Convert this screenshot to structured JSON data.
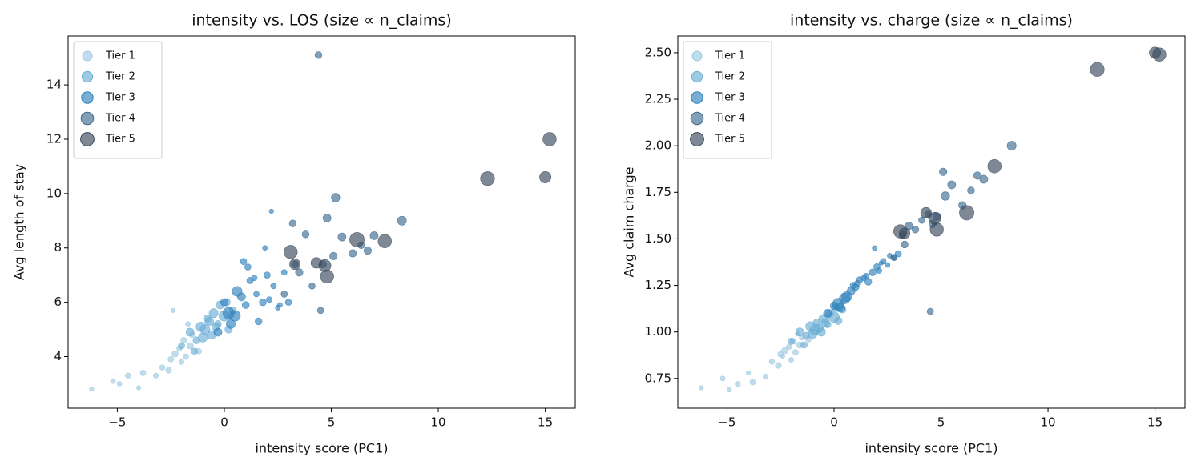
{
  "chart_data": [
    {
      "type": "scatter",
      "title": "intensity vs. LOS (size ∝ n_claims)",
      "x_label": "intensity score (PC1)",
      "y_label": "Avg length of stay",
      "xlim": [
        -7.3,
        16.4
      ],
      "ylim": [
        2.1,
        15.8
      ],
      "xticks": [
        {
          "value": -5,
          "label": "−5"
        },
        0,
        5,
        10,
        15
      ],
      "yticks": [
        4,
        6,
        8,
        10,
        12,
        14
      ],
      "legend": "upper left",
      "series": [
        {
          "name": "Tier 1",
          "color": "#9ecae1",
          "x": [
            -6.2,
            -5.2,
            -4.9,
            -4.5,
            -4.0,
            -3.8,
            -3.2,
            -2.9,
            -2.6,
            -2.5,
            -2.3,
            -2.1,
            -2.0,
            -1.9,
            -1.8,
            -1.6,
            -1.5,
            -2.4,
            -1.2,
            -1.7
          ],
          "y": [
            2.8,
            3.1,
            3.0,
            3.3,
            2.85,
            3.4,
            3.3,
            3.6,
            3.5,
            3.9,
            4.1,
            4.3,
            3.8,
            4.6,
            4.0,
            4.4,
            4.8,
            5.7,
            4.2,
            5.2
          ],
          "sizes": [
            12,
            15,
            14,
            18,
            12,
            20,
            16,
            18,
            22,
            20,
            25,
            18,
            15,
            22,
            20,
            25,
            18,
            12,
            20,
            15
          ]
        },
        {
          "name": "Tier 2",
          "color": "#6baed6",
          "x": [
            -2.0,
            -1.6,
            -1.3,
            -1.1,
            -0.9,
            -0.8,
            -0.6,
            -0.5,
            -0.3,
            -0.2,
            0,
            0.2,
            0.4,
            -1.4,
            -0.7,
            -1.0,
            0.1,
            -0.4
          ],
          "y": [
            4.4,
            4.9,
            4.6,
            5.1,
            5.0,
            5.4,
            4.8,
            5.6,
            5.2,
            5.9,
            5.5,
            5.0,
            5.7,
            4.2,
            5.3,
            4.7,
            6.0,
            5.1
          ],
          "sizes": [
            25,
            40,
            30,
            55,
            60,
            35,
            45,
            50,
            30,
            40,
            70,
            35,
            30,
            25,
            45,
            50,
            35,
            40
          ]
        },
        {
          "name": "Tier 3",
          "color": "#3182bd",
          "x": [
            0.2,
            0.5,
            0.8,
            1.0,
            1.2,
            1.5,
            1.8,
            2.0,
            2.3,
            2.5,
            2.8,
            3.0,
            0.6,
            1.1,
            1.6,
            0.3,
            2.1,
            0.9,
            1.4,
            2.6,
            -0.3,
            0.0,
            2.2,
            1.9
          ],
          "y": [
            5.6,
            5.5,
            6.2,
            5.9,
            6.8,
            6.3,
            6.0,
            7.0,
            6.6,
            5.8,
            7.1,
            6.0,
            6.4,
            7.3,
            5.3,
            5.2,
            6.1,
            7.5,
            6.9,
            5.9,
            4.9,
            6.0,
            9.35,
            8.0
          ],
          "sizes": [
            80,
            70,
            40,
            30,
            25,
            20,
            30,
            25,
            20,
            15,
            20,
            25,
            60,
            25,
            30,
            50,
            20,
            25,
            20,
            15,
            40,
            35,
            12,
            15
          ]
        },
        {
          "name": "Tier 4",
          "color": "#3d6b91",
          "x": [
            3.2,
            3.5,
            3.8,
            4.1,
            4.5,
            4.8,
            5.2,
            5.5,
            6.0,
            6.4,
            6.7,
            7.0,
            8.3,
            4.4,
            3.3,
            5.1,
            2.8,
            4.6
          ],
          "y": [
            8.9,
            7.1,
            8.5,
            6.6,
            5.7,
            9.1,
            9.85,
            8.4,
            7.8,
            8.1,
            7.9,
            8.45,
            9.0,
            15.1,
            7.4,
            7.7,
            6.3,
            7.4
          ],
          "sizes": [
            30,
            35,
            30,
            25,
            25,
            40,
            45,
            40,
            35,
            30,
            35,
            40,
            50,
            30,
            30,
            35,
            25,
            35
          ]
        },
        {
          "name": "Tier 5",
          "color": "#3a4a5c",
          "x": [
            3.1,
            4.3,
            4.8,
            6.2,
            7.5,
            12.3,
            15.0,
            15.2,
            3.3,
            4.7
          ],
          "y": [
            7.85,
            7.45,
            6.95,
            8.3,
            8.25,
            10.55,
            10.6,
            12.0,
            7.4,
            7.35
          ],
          "sizes": [
            110,
            70,
            110,
            130,
            110,
            120,
            80,
            110,
            70,
            90
          ]
        }
      ]
    },
    {
      "type": "scatter",
      "title": "intensity vs. charge (size ∝ n_claims)",
      "x_label": "intensity score (PC1)",
      "y_label": "Avg claim charge",
      "xlim": [
        -7.3,
        16.4
      ],
      "ylim": [
        0.59,
        2.59
      ],
      "xticks": [
        {
          "value": -5,
          "label": "−5"
        },
        0,
        5,
        10,
        15
      ],
      "yticks": [
        0.75,
        {
          "value": 1,
          "label": "1.00"
        },
        1.25,
        {
          "value": 1.5,
          "label": "1.50"
        },
        1.75,
        {
          "value": 2,
          "label": "2.00"
        },
        2.25,
        {
          "value": 2.5,
          "label": "2.50"
        }
      ],
      "legend": "upper left",
      "series": [
        {
          "name": "Tier 1",
          "color": "#9ecae1",
          "x": [
            -6.2,
            -5.2,
            -4.9,
            -4.5,
            -4.0,
            -3.8,
            -3.2,
            -2.9,
            -2.6,
            -2.5,
            -2.3,
            -2.1,
            -2.0,
            -1.9,
            -1.8,
            -1.6,
            -1.5,
            -2.4,
            -1.2,
            -1.7
          ],
          "y": [
            0.7,
            0.75,
            0.69,
            0.72,
            0.78,
            0.73,
            0.76,
            0.84,
            0.82,
            0.88,
            0.9,
            0.92,
            0.85,
            0.95,
            0.89,
            0.93,
            0.97,
            0.87,
            0.96,
            0.99
          ],
          "sizes": [
            12,
            15,
            14,
            18,
            12,
            20,
            16,
            18,
            22,
            20,
            25,
            18,
            15,
            22,
            20,
            25,
            18,
            12,
            20,
            15
          ]
        },
        {
          "name": "Tier 2",
          "color": "#6baed6",
          "x": [
            -2.0,
            -1.6,
            -1.3,
            -1.1,
            -0.9,
            -0.8,
            -0.6,
            -0.5,
            -0.3,
            -0.2,
            0,
            0.2,
            0.4,
            -1.4,
            -0.7,
            -1.0,
            0.1,
            -0.4
          ],
          "y": [
            0.95,
            1.0,
            0.98,
            1.03,
            1.01,
            1.05,
            1.0,
            1.07,
            1.04,
            1.1,
            1.08,
            1.06,
            1.12,
            0.93,
            1.02,
            0.99,
            1.13,
            1.05
          ],
          "sizes": [
            25,
            40,
            30,
            55,
            60,
            35,
            45,
            50,
            30,
            40,
            70,
            35,
            30,
            25,
            45,
            50,
            35,
            40
          ]
        },
        {
          "name": "Tier 3",
          "color": "#3182bd",
          "x": [
            0.2,
            0.5,
            0.8,
            1.0,
            1.2,
            1.5,
            1.8,
            2.0,
            2.3,
            2.5,
            2.8,
            3.0,
            0.6,
            1.1,
            1.6,
            0.3,
            2.1,
            0.9,
            1.4,
            2.6,
            -0.3,
            0.0,
            2.2,
            1.9
          ],
          "y": [
            1.15,
            1.18,
            1.22,
            1.24,
            1.28,
            1.3,
            1.32,
            1.35,
            1.38,
            1.36,
            1.4,
            1.42,
            1.19,
            1.26,
            1.27,
            1.13,
            1.33,
            1.25,
            1.29,
            1.41,
            1.1,
            1.14,
            1.37,
            1.45
          ],
          "sizes": [
            80,
            70,
            40,
            30,
            25,
            20,
            30,
            25,
            20,
            15,
            20,
            25,
            60,
            25,
            30,
            50,
            20,
            25,
            20,
            15,
            40,
            35,
            12,
            15
          ]
        },
        {
          "name": "Tier 4",
          "color": "#3d6b91",
          "x": [
            3.2,
            3.5,
            3.8,
            4.1,
            4.5,
            4.8,
            5.2,
            5.5,
            6.0,
            6.4,
            6.7,
            7.0,
            8.3,
            4.4,
            3.3,
            5.1,
            2.8,
            4.6
          ],
          "y": [
            1.52,
            1.57,
            1.55,
            1.6,
            1.11,
            1.62,
            1.73,
            1.79,
            1.68,
            1.76,
            1.84,
            1.82,
            2.0,
            1.63,
            1.47,
            1.86,
            1.4,
            1.58
          ],
          "sizes": [
            30,
            35,
            30,
            25,
            25,
            40,
            45,
            40,
            35,
            30,
            35,
            40,
            50,
            30,
            30,
            35,
            25,
            35
          ]
        },
        {
          "name": "Tier 5",
          "color": "#3a4a5c",
          "x": [
            3.1,
            4.3,
            4.8,
            6.2,
            7.5,
            12.3,
            15.0,
            15.2,
            3.3,
            4.7
          ],
          "y": [
            1.54,
            1.64,
            1.55,
            1.64,
            1.89,
            2.41,
            2.5,
            2.49,
            1.53,
            1.61
          ],
          "sizes": [
            110,
            70,
            110,
            130,
            110,
            120,
            80,
            110,
            70,
            90
          ]
        }
      ]
    }
  ]
}
